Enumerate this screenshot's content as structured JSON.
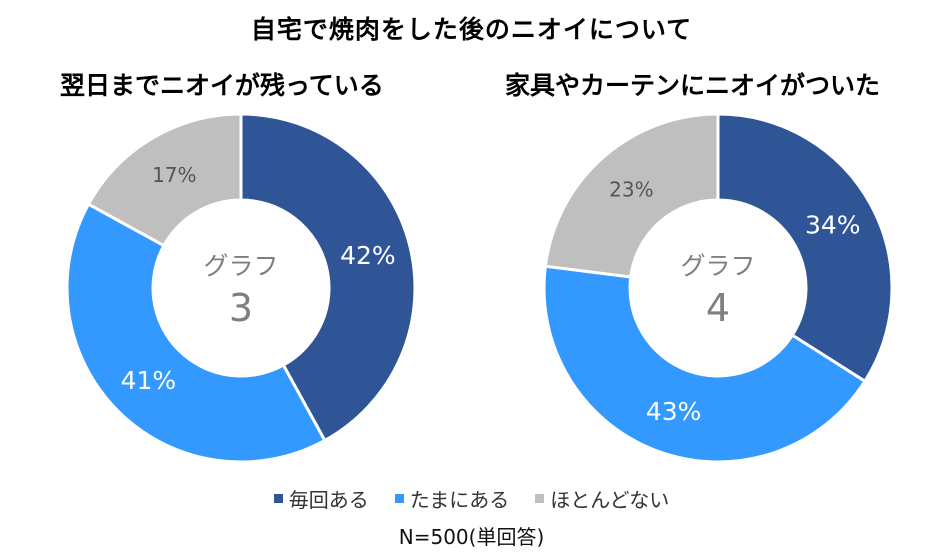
{
  "title": "自宅で焼肉をした後のニオイについて",
  "footnote": "N=500(単回答)",
  "legend": [
    {
      "label": "毎回ある",
      "color": "#2f5597"
    },
    {
      "label": "たまにある",
      "color": "#3399ff"
    },
    {
      "label": "ほとんどない",
      "color": "#bfbfbf"
    }
  ],
  "chart_data": [
    {
      "type": "pie",
      "title": "翌日までニオイが残っている",
      "center_label": "グラフ",
      "center_number": "3",
      "categories": [
        "毎回ある",
        "たまにある",
        "ほとんどない"
      ],
      "values": [
        42,
        41,
        17
      ],
      "value_labels": [
        "42%",
        "41%",
        "17%"
      ],
      "colors": [
        "#2f5597",
        "#3399ff",
        "#bfbfbf"
      ]
    },
    {
      "type": "pie",
      "title": "家具やカーテンにニオイがついた",
      "center_label": "グラフ",
      "center_number": "4",
      "categories": [
        "毎回ある",
        "たまにある",
        "ほとんどない"
      ],
      "values": [
        34,
        43,
        23
      ],
      "value_labels": [
        "34%",
        "43%",
        "23%"
      ],
      "colors": [
        "#2f5597",
        "#3399ff",
        "#bfbfbf"
      ]
    }
  ]
}
